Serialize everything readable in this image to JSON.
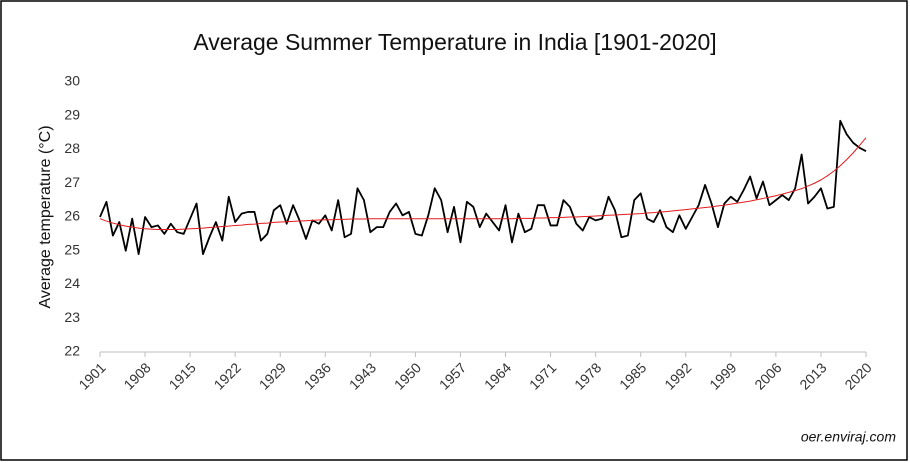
{
  "chart_data": {
    "type": "line",
    "title": "Average Summer Temperature in India [1901-2020]",
    "y_label": "Average temperature (°C)",
    "source": "oer.enviraj.com",
    "x": [
      1901,
      1902,
      1903,
      1904,
      1905,
      1906,
      1907,
      1908,
      1909,
      1910,
      1911,
      1912,
      1913,
      1914,
      1915,
      1916,
      1917,
      1918,
      1919,
      1920,
      1921,
      1922,
      1923,
      1924,
      1925,
      1926,
      1927,
      1928,
      1929,
      1930,
      1931,
      1932,
      1933,
      1934,
      1935,
      1936,
      1937,
      1938,
      1939,
      1940,
      1941,
      1942,
      1943,
      1944,
      1945,
      1946,
      1947,
      1948,
      1949,
      1950,
      1951,
      1952,
      1953,
      1954,
      1955,
      1956,
      1957,
      1958,
      1959,
      1960,
      1961,
      1962,
      1963,
      1964,
      1965,
      1966,
      1967,
      1968,
      1969,
      1970,
      1971,
      1972,
      1973,
      1974,
      1975,
      1976,
      1977,
      1978,
      1979,
      1980,
      1981,
      1982,
      1983,
      1984,
      1985,
      1986,
      1987,
      1988,
      1989,
      1990,
      1991,
      1992,
      1993,
      1994,
      1995,
      1996,
      1997,
      1998,
      1999,
      2000,
      2001,
      2002,
      2003,
      2004,
      2005,
      2006,
      2007,
      2008,
      2009,
      2010,
      2011,
      2012,
      2013,
      2014,
      2015,
      2016,
      2017,
      2018,
      2019,
      2020
    ],
    "series": [
      {
        "color": "#000000",
        "values": [
          26.0,
          26.45,
          25.45,
          25.85,
          25.0,
          25.95,
          24.9,
          26.0,
          25.7,
          25.75,
          25.5,
          25.8,
          25.55,
          25.5,
          25.95,
          26.4,
          24.9,
          25.4,
          25.85,
          25.3,
          26.6,
          25.85,
          26.1,
          26.15,
          26.15,
          25.3,
          25.5,
          26.2,
          26.35,
          25.8,
          26.35,
          25.9,
          25.35,
          25.9,
          25.8,
          26.05,
          25.6,
          26.5,
          25.4,
          25.5,
          26.85,
          26.5,
          25.55,
          25.7,
          25.7,
          26.15,
          26.4,
          26.05,
          26.15,
          25.5,
          25.45,
          26.05,
          26.85,
          26.5,
          25.55,
          26.3,
          25.25,
          26.45,
          26.3,
          25.7,
          26.1,
          25.85,
          25.6,
          26.35,
          25.25,
          26.1,
          25.55,
          25.65,
          26.35,
          26.35,
          25.75,
          25.75,
          26.5,
          26.3,
          25.8,
          25.6,
          26.0,
          25.9,
          25.95,
          26.6,
          26.2,
          25.4,
          25.45,
          26.5,
          26.7,
          25.95,
          25.85,
          26.2,
          25.7,
          25.55,
          26.05,
          25.65,
          26.0,
          26.35,
          26.95,
          26.4,
          25.7,
          26.4,
          26.6,
          26.45,
          26.8,
          27.2,
          26.55,
          27.05,
          26.35,
          26.5,
          26.65,
          26.5,
          26.85,
          27.85,
          26.4,
          26.6,
          26.85,
          26.25,
          26.3,
          28.85,
          28.45,
          28.2,
          28.05,
          27.95
        ]
      },
      {
        "color": "#e31a1c",
        "values": [
          25.95,
          25.88,
          25.82,
          25.77,
          25.73,
          25.7,
          25.67,
          25.65,
          25.64,
          25.63,
          25.63,
          25.63,
          25.63,
          25.64,
          25.65,
          25.66,
          25.67,
          25.69,
          25.7,
          25.72,
          25.73,
          25.75,
          25.76,
          25.78,
          25.79,
          25.81,
          25.82,
          25.84,
          25.85,
          25.86,
          25.87,
          25.88,
          25.89,
          25.9,
          25.91,
          25.92,
          25.92,
          25.93,
          25.93,
          25.94,
          25.94,
          25.94,
          25.95,
          25.95,
          25.95,
          25.95,
          25.95,
          25.95,
          25.95,
          25.95,
          25.95,
          25.95,
          25.95,
          25.95,
          25.95,
          25.95,
          25.95,
          25.95,
          25.95,
          25.95,
          25.95,
          25.95,
          25.95,
          25.95,
          25.95,
          25.96,
          25.96,
          25.96,
          25.97,
          25.97,
          25.98,
          25.98,
          25.99,
          26.0,
          26.0,
          26.01,
          26.02,
          26.03,
          26.04,
          26.05,
          26.06,
          26.07,
          26.08,
          26.09,
          26.1,
          26.12,
          26.13,
          26.15,
          26.16,
          26.18,
          26.2,
          26.22,
          26.24,
          26.26,
          26.28,
          26.3,
          26.33,
          26.35,
          26.38,
          26.41,
          26.44,
          26.47,
          26.51,
          26.55,
          26.59,
          26.63,
          26.68,
          26.73,
          26.78,
          26.84,
          26.92,
          27.0,
          27.1,
          27.22,
          27.36,
          27.52,
          27.7,
          27.9,
          28.12,
          28.35
        ]
      }
    ],
    "xlim": [
      1901,
      2020
    ],
    "xticks": [
      1901,
      1908,
      1915,
      1922,
      1929,
      1936,
      1943,
      1950,
      1957,
      1964,
      1971,
      1978,
      1985,
      1992,
      1999,
      2006,
      2013,
      2020
    ],
    "ylim": [
      22,
      30
    ],
    "yticks": [
      22,
      23,
      24,
      25,
      26,
      27,
      28,
      29,
      30
    ],
    "grid": false
  }
}
